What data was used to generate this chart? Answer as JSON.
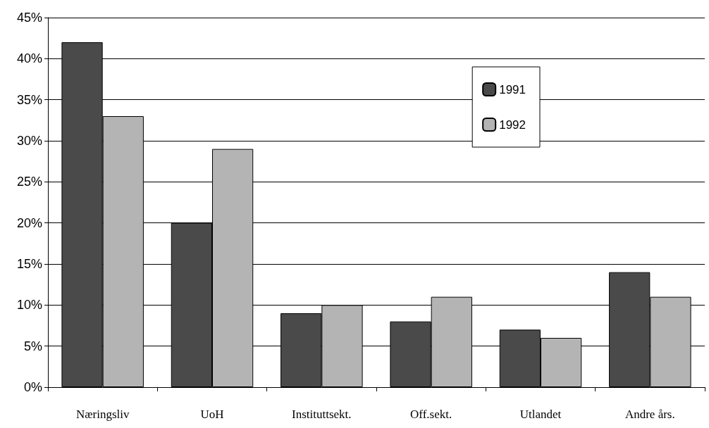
{
  "chart_data": {
    "type": "bar",
    "categories": [
      "Næringsliv",
      "UoH",
      "Instituttsekt.",
      "Off.sekt.",
      "Utlandet",
      "Andre års."
    ],
    "series": [
      {
        "name": "1991",
        "color": "#4a4a4a",
        "values": [
          42,
          20,
          9,
          8,
          7,
          14
        ]
      },
      {
        "name": "1992",
        "color": "#b4b4b4",
        "values": [
          33,
          29,
          10,
          11,
          6,
          11
        ]
      }
    ],
    "ylim": [
      0,
      45
    ],
    "yticks": [
      {
        "value": 0,
        "label": "0%"
      },
      {
        "value": 5,
        "label": "5%"
      },
      {
        "value": 10,
        "label": "10%"
      },
      {
        "value": 15,
        "label": "15%"
      },
      {
        "value": 20,
        "label": "20%"
      },
      {
        "value": 25,
        "label": "25%"
      },
      {
        "value": 30,
        "label": "30%"
      },
      {
        "value": 35,
        "label": "35%"
      },
      {
        "value": 40,
        "label": "40%"
      },
      {
        "value": 45,
        "label": "45%"
      }
    ],
    "grid": "y",
    "legend": "top right"
  }
}
